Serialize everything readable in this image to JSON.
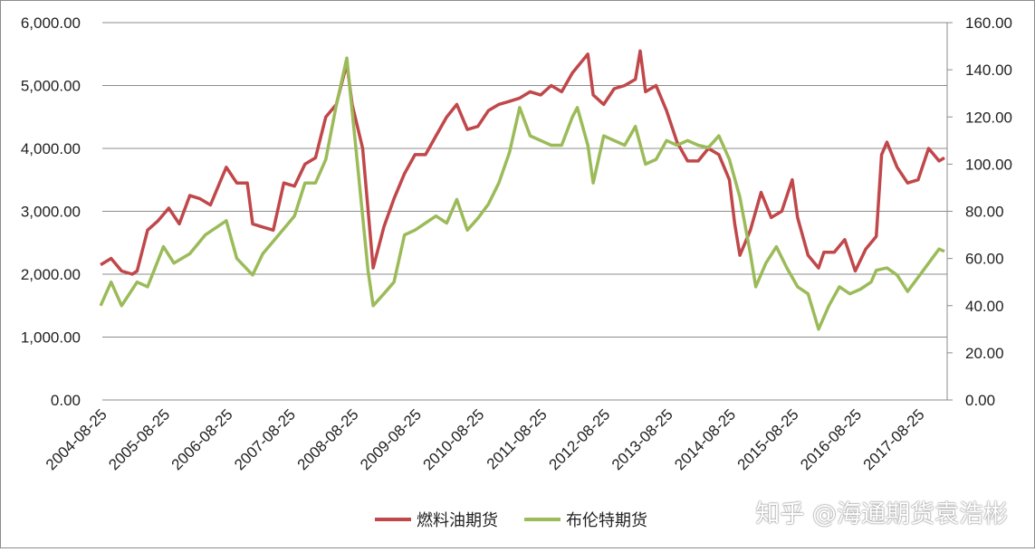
{
  "chart_data": {
    "type": "line",
    "title": "",
    "xlabel": "",
    "ylabel": "",
    "y_left": {
      "range": [
        0,
        6000
      ],
      "ticks": [
        "0.00",
        "1,000.00",
        "2,000.00",
        "3,000.00",
        "4,000.00",
        "5,000.00",
        "6,000.00"
      ]
    },
    "y_right": {
      "range": [
        0,
        160
      ],
      "ticks": [
        "0.00",
        "20.00",
        "40.00",
        "60.00",
        "80.00",
        "100.00",
        "120.00",
        "140.00",
        "160.00"
      ]
    },
    "x_range": [
      "2004-08-25",
      "2018-01-31"
    ],
    "x_ticks": [
      "2004-08-25",
      "2005-08-25",
      "2006-08-25",
      "2007-08-25",
      "2008-08-25",
      "2009-08-25",
      "2010-08-25",
      "2011-08-25",
      "2012-08-25",
      "2013-08-25",
      "2014-08-25",
      "2015-08-25",
      "2016-08-25",
      "2017-08-25"
    ],
    "grid": "horizontal",
    "legend_position": "bottom",
    "series": [
      {
        "name": "燃料油期货",
        "axis": "left",
        "color": "#c0474a",
        "points": [
          [
            "2004-08",
            2150
          ],
          [
            "2004-10",
            2250
          ],
          [
            "2004-12",
            2050
          ],
          [
            "2005-02",
            2000
          ],
          [
            "2005-03",
            2050
          ],
          [
            "2005-05",
            2700
          ],
          [
            "2005-07",
            2850
          ],
          [
            "2005-09",
            3050
          ],
          [
            "2005-11",
            2800
          ],
          [
            "2006-01",
            3250
          ],
          [
            "2006-03",
            3200
          ],
          [
            "2006-05",
            3100
          ],
          [
            "2006-07",
            3500
          ],
          [
            "2006-08",
            3700
          ],
          [
            "2006-10",
            3450
          ],
          [
            "2006-12",
            3450
          ],
          [
            "2007-01",
            2800
          ],
          [
            "2007-03",
            2750
          ],
          [
            "2007-05",
            2700
          ],
          [
            "2007-07",
            3450
          ],
          [
            "2007-09",
            3400
          ],
          [
            "2007-11",
            3750
          ],
          [
            "2008-01",
            3850
          ],
          [
            "2008-03",
            4500
          ],
          [
            "2008-05",
            4700
          ],
          [
            "2008-07",
            5350
          ],
          [
            "2008-08",
            4700
          ],
          [
            "2008-10",
            4000
          ],
          [
            "2008-12",
            2100
          ],
          [
            "2009-02",
            2750
          ],
          [
            "2009-04",
            3200
          ],
          [
            "2009-06",
            3600
          ],
          [
            "2009-08",
            3900
          ],
          [
            "2009-10",
            3900
          ],
          [
            "2009-12",
            4200
          ],
          [
            "2010-02",
            4500
          ],
          [
            "2010-04",
            4700
          ],
          [
            "2010-06",
            4300
          ],
          [
            "2010-08",
            4350
          ],
          [
            "2010-10",
            4600
          ],
          [
            "2010-12",
            4700
          ],
          [
            "2011-02",
            4750
          ],
          [
            "2011-04",
            4800
          ],
          [
            "2011-06",
            4900
          ],
          [
            "2011-08",
            4850
          ],
          [
            "2011-10",
            5000
          ],
          [
            "2011-12",
            4900
          ],
          [
            "2012-02",
            5200
          ],
          [
            "2012-04",
            5400
          ],
          [
            "2012-05",
            5500
          ],
          [
            "2012-06",
            4850
          ],
          [
            "2012-08",
            4700
          ],
          [
            "2012-10",
            4950
          ],
          [
            "2012-12",
            5000
          ],
          [
            "2013-02",
            5100
          ],
          [
            "2013-03",
            5550
          ],
          [
            "2013-04",
            4900
          ],
          [
            "2013-06",
            5000
          ],
          [
            "2013-08",
            4600
          ],
          [
            "2013-10",
            4100
          ],
          [
            "2013-12",
            3800
          ],
          [
            "2014-02",
            3800
          ],
          [
            "2014-04",
            4000
          ],
          [
            "2014-06",
            3900
          ],
          [
            "2014-08",
            3500
          ],
          [
            "2014-09",
            2800
          ],
          [
            "2014-10",
            2300
          ],
          [
            "2014-12",
            2700
          ],
          [
            "2015-02",
            3300
          ],
          [
            "2015-04",
            2900
          ],
          [
            "2015-06",
            3000
          ],
          [
            "2015-08",
            3500
          ],
          [
            "2015-09",
            2900
          ],
          [
            "2015-11",
            2300
          ],
          [
            "2016-01",
            2100
          ],
          [
            "2016-02",
            2350
          ],
          [
            "2016-04",
            2350
          ],
          [
            "2016-06",
            2550
          ],
          [
            "2016-08",
            2050
          ],
          [
            "2016-10",
            2400
          ],
          [
            "2016-12",
            2600
          ],
          [
            "2017-01",
            3900
          ],
          [
            "2017-02",
            4100
          ],
          [
            "2017-04",
            3700
          ],
          [
            "2017-06",
            3450
          ],
          [
            "2017-08",
            3500
          ],
          [
            "2017-10",
            4000
          ],
          [
            "2017-12",
            3800
          ],
          [
            "2018-01",
            3850
          ]
        ]
      },
      {
        "name": "布伦特期货",
        "axis": "right",
        "color": "#9bbb59",
        "points": [
          [
            "2004-08",
            40
          ],
          [
            "2004-10",
            50
          ],
          [
            "2004-12",
            40
          ],
          [
            "2005-03",
            50
          ],
          [
            "2005-05",
            48
          ],
          [
            "2005-08",
            65
          ],
          [
            "2005-10",
            58
          ],
          [
            "2006-01",
            62
          ],
          [
            "2006-04",
            70
          ],
          [
            "2006-08",
            76
          ],
          [
            "2006-10",
            60
          ],
          [
            "2007-01",
            53
          ],
          [
            "2007-03",
            62
          ],
          [
            "2007-06",
            70
          ],
          [
            "2007-09",
            78
          ],
          [
            "2007-11",
            92
          ],
          [
            "2008-01",
            92
          ],
          [
            "2008-03",
            102
          ],
          [
            "2008-05",
            125
          ],
          [
            "2008-07",
            145
          ],
          [
            "2008-09",
            100
          ],
          [
            "2008-11",
            55
          ],
          [
            "2008-12",
            40
          ],
          [
            "2009-02",
            45
          ],
          [
            "2009-04",
            50
          ],
          [
            "2009-06",
            70
          ],
          [
            "2009-08",
            72
          ],
          [
            "2009-10",
            75
          ],
          [
            "2009-12",
            78
          ],
          [
            "2010-02",
            75
          ],
          [
            "2010-04",
            85
          ],
          [
            "2010-06",
            72
          ],
          [
            "2010-08",
            77
          ],
          [
            "2010-10",
            83
          ],
          [
            "2010-12",
            92
          ],
          [
            "2011-02",
            105
          ],
          [
            "2011-04",
            124
          ],
          [
            "2011-06",
            112
          ],
          [
            "2011-08",
            110
          ],
          [
            "2011-10",
            108
          ],
          [
            "2011-12",
            108
          ],
          [
            "2012-02",
            120
          ],
          [
            "2012-03",
            124
          ],
          [
            "2012-05",
            108
          ],
          [
            "2012-06",
            92
          ],
          [
            "2012-08",
            112
          ],
          [
            "2012-10",
            110
          ],
          [
            "2012-12",
            108
          ],
          [
            "2013-02",
            116
          ],
          [
            "2013-04",
            100
          ],
          [
            "2013-06",
            102
          ],
          [
            "2013-08",
            110
          ],
          [
            "2013-10",
            108
          ],
          [
            "2013-12",
            110
          ],
          [
            "2014-02",
            108
          ],
          [
            "2014-04",
            107
          ],
          [
            "2014-06",
            112
          ],
          [
            "2014-08",
            102
          ],
          [
            "2014-10",
            86
          ],
          [
            "2014-12",
            62
          ],
          [
            "2015-01",
            48
          ],
          [
            "2015-03",
            58
          ],
          [
            "2015-05",
            65
          ],
          [
            "2015-07",
            56
          ],
          [
            "2015-09",
            48
          ],
          [
            "2015-11",
            45
          ],
          [
            "2016-01",
            30
          ],
          [
            "2016-03",
            40
          ],
          [
            "2016-05",
            48
          ],
          [
            "2016-07",
            45
          ],
          [
            "2016-09",
            47
          ],
          [
            "2016-11",
            50
          ],
          [
            "2016-12",
            55
          ],
          [
            "2017-02",
            56
          ],
          [
            "2017-04",
            53
          ],
          [
            "2017-06",
            46
          ],
          [
            "2017-08",
            52
          ],
          [
            "2017-10",
            58
          ],
          [
            "2017-12",
            64
          ],
          [
            "2018-01",
            63
          ]
        ]
      }
    ]
  },
  "watermark": "知乎 @海通期货袁浩彬"
}
